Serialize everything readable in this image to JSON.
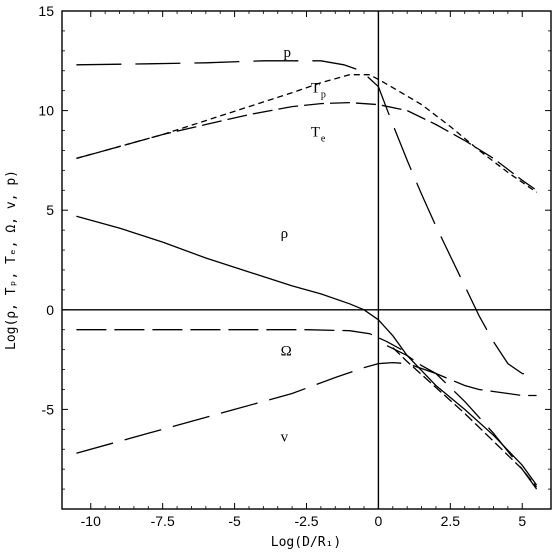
{
  "chart_data": {
    "type": "line",
    "title": "",
    "xlabel": "Log(D/R₁)",
    "ylabel": "Log(ρ, Tₚ, Tₑ, Ω, v, p)",
    "xlim": [
      -11,
      6
    ],
    "ylim": [
      -10,
      15
    ],
    "xticks": [
      -10,
      -7.5,
      -5,
      -2.5,
      0,
      2.5,
      5
    ],
    "xtick_labels": [
      "-10",
      "-7.5",
      "-5",
      "-2.5",
      "0",
      "2.5",
      "5"
    ],
    "yticks": [
      -5,
      0,
      5,
      10,
      15
    ],
    "ytick_labels": [
      "-5",
      "0",
      "5",
      "10",
      "15"
    ],
    "reference_lines": {
      "x": 0,
      "y": 0
    },
    "grid": false,
    "series": [
      {
        "label": "p",
        "sub": "",
        "dash": "45 14",
        "x": [
          -10.5,
          -8,
          -6,
          -4,
          -2,
          -1.2,
          -0.6,
          0,
          0.5,
          1,
          1.5,
          2,
          2.5,
          3,
          3.5,
          4,
          4.5,
          5,
          5.5
        ],
        "y": [
          12.3,
          12.35,
          12.4,
          12.5,
          12.5,
          12.3,
          12.0,
          11.2,
          9.3,
          7.5,
          5.8,
          4.2,
          2.7,
          1.2,
          -0.3,
          -1.6,
          -2.7,
          -3.2,
          -3.3
        ]
      },
      {
        "label": "T",
        "sub": "p",
        "dash": "6 4",
        "x": [
          -10.5,
          -9,
          -7.5,
          -6,
          -4.5,
          -3,
          -2,
          -1,
          -0.3,
          0.2,
          0.8,
          1.5,
          2.5,
          3.5,
          4.5,
          5.5
        ],
        "y": [
          7.6,
          8.2,
          8.8,
          9.5,
          10.2,
          10.9,
          11.4,
          11.8,
          11.8,
          11.4,
          10.9,
          10.3,
          9.2,
          8.0,
          6.9,
          5.9
        ]
      },
      {
        "label": "T",
        "sub": "e",
        "dash": "20 6",
        "x": [
          -10.5,
          -9,
          -7.5,
          -6,
          -4.5,
          -3,
          -2,
          -1,
          0,
          1,
          2,
          3,
          4,
          5,
          5.5
        ],
        "y": [
          7.6,
          8.2,
          8.8,
          9.3,
          9.8,
          10.2,
          10.35,
          10.4,
          10.3,
          10.0,
          9.3,
          8.5,
          7.6,
          6.5,
          6.0
        ]
      },
      {
        "label": "ρ",
        "sub": "",
        "dash": "",
        "x": [
          -10.5,
          -9,
          -7.5,
          -6,
          -4.5,
          -3,
          -2,
          -1,
          -0.5,
          0,
          0.5,
          1,
          2,
          3,
          4,
          5,
          5.5
        ],
        "y": [
          4.7,
          4.1,
          3.4,
          2.6,
          1.9,
          1.2,
          0.8,
          0.3,
          0.0,
          -0.5,
          -1.3,
          -2.3,
          -3.8,
          -5.0,
          -6.3,
          -7.8,
          -8.8
        ]
      },
      {
        "label": "Ω",
        "sub": "",
        "dash": "30 8",
        "x": [
          -10.5,
          -8,
          -5,
          -2.5,
          -1,
          -0.3,
          0.3,
          0.8
        ],
        "y": [
          -1.0,
          -1.0,
          -1.0,
          -1.0,
          -1.05,
          -1.2,
          -1.6,
          -2.0
        ]
      },
      {
        "label": "",
        "sub": "",
        "dash": "30 8",
        "x": [
          0.3,
          1,
          1.5,
          2,
          2.5,
          3,
          3.5,
          4,
          4.5,
          5,
          5.5
        ],
        "y": [
          -1.8,
          -2.3,
          -2.8,
          -3.2,
          -3.5,
          -3.8,
          -4.0,
          -4.1,
          -4.2,
          -4.3,
          -4.3
        ]
      },
      {
        "label": "v",
        "sub": "",
        "dash": "38 12",
        "x": [
          -10.5,
          -8,
          -5,
          -3,
          -1.5,
          -0.5,
          0,
          0.5,
          1,
          2,
          3,
          4,
          5,
          5.5
        ],
        "y": [
          -7.2,
          -6.2,
          -5.0,
          -4.2,
          -3.4,
          -2.9,
          -2.7,
          -2.65,
          -2.7,
          -3.2,
          -4.6,
          -6.2,
          -8.0,
          -9.0
        ]
      },
      {
        "label": "",
        "sub": "",
        "dash": "10 4",
        "x": [
          0.5,
          1,
          2,
          3,
          4,
          5,
          5.5
        ],
        "y": [
          -1.9,
          -2.6,
          -3.9,
          -5.2,
          -6.6,
          -8.0,
          -8.9
        ]
      }
    ],
    "curve_labels": [
      {
        "text": "p",
        "sub": "",
        "x": -3.3,
        "y": 12.7
      },
      {
        "text": "T",
        "sub": "p",
        "x": -2.35,
        "y": 10.9
      },
      {
        "text": "T",
        "sub": "e",
        "x": -2.35,
        "y": 8.7
      },
      {
        "text": "ρ",
        "sub": "",
        "x": -3.4,
        "y": 3.6
      },
      {
        "text": "Ω",
        "sub": "",
        "x": -3.4,
        "y": -2.3
      },
      {
        "text": "v",
        "sub": "",
        "x": -3.4,
        "y": -6.6
      }
    ]
  }
}
